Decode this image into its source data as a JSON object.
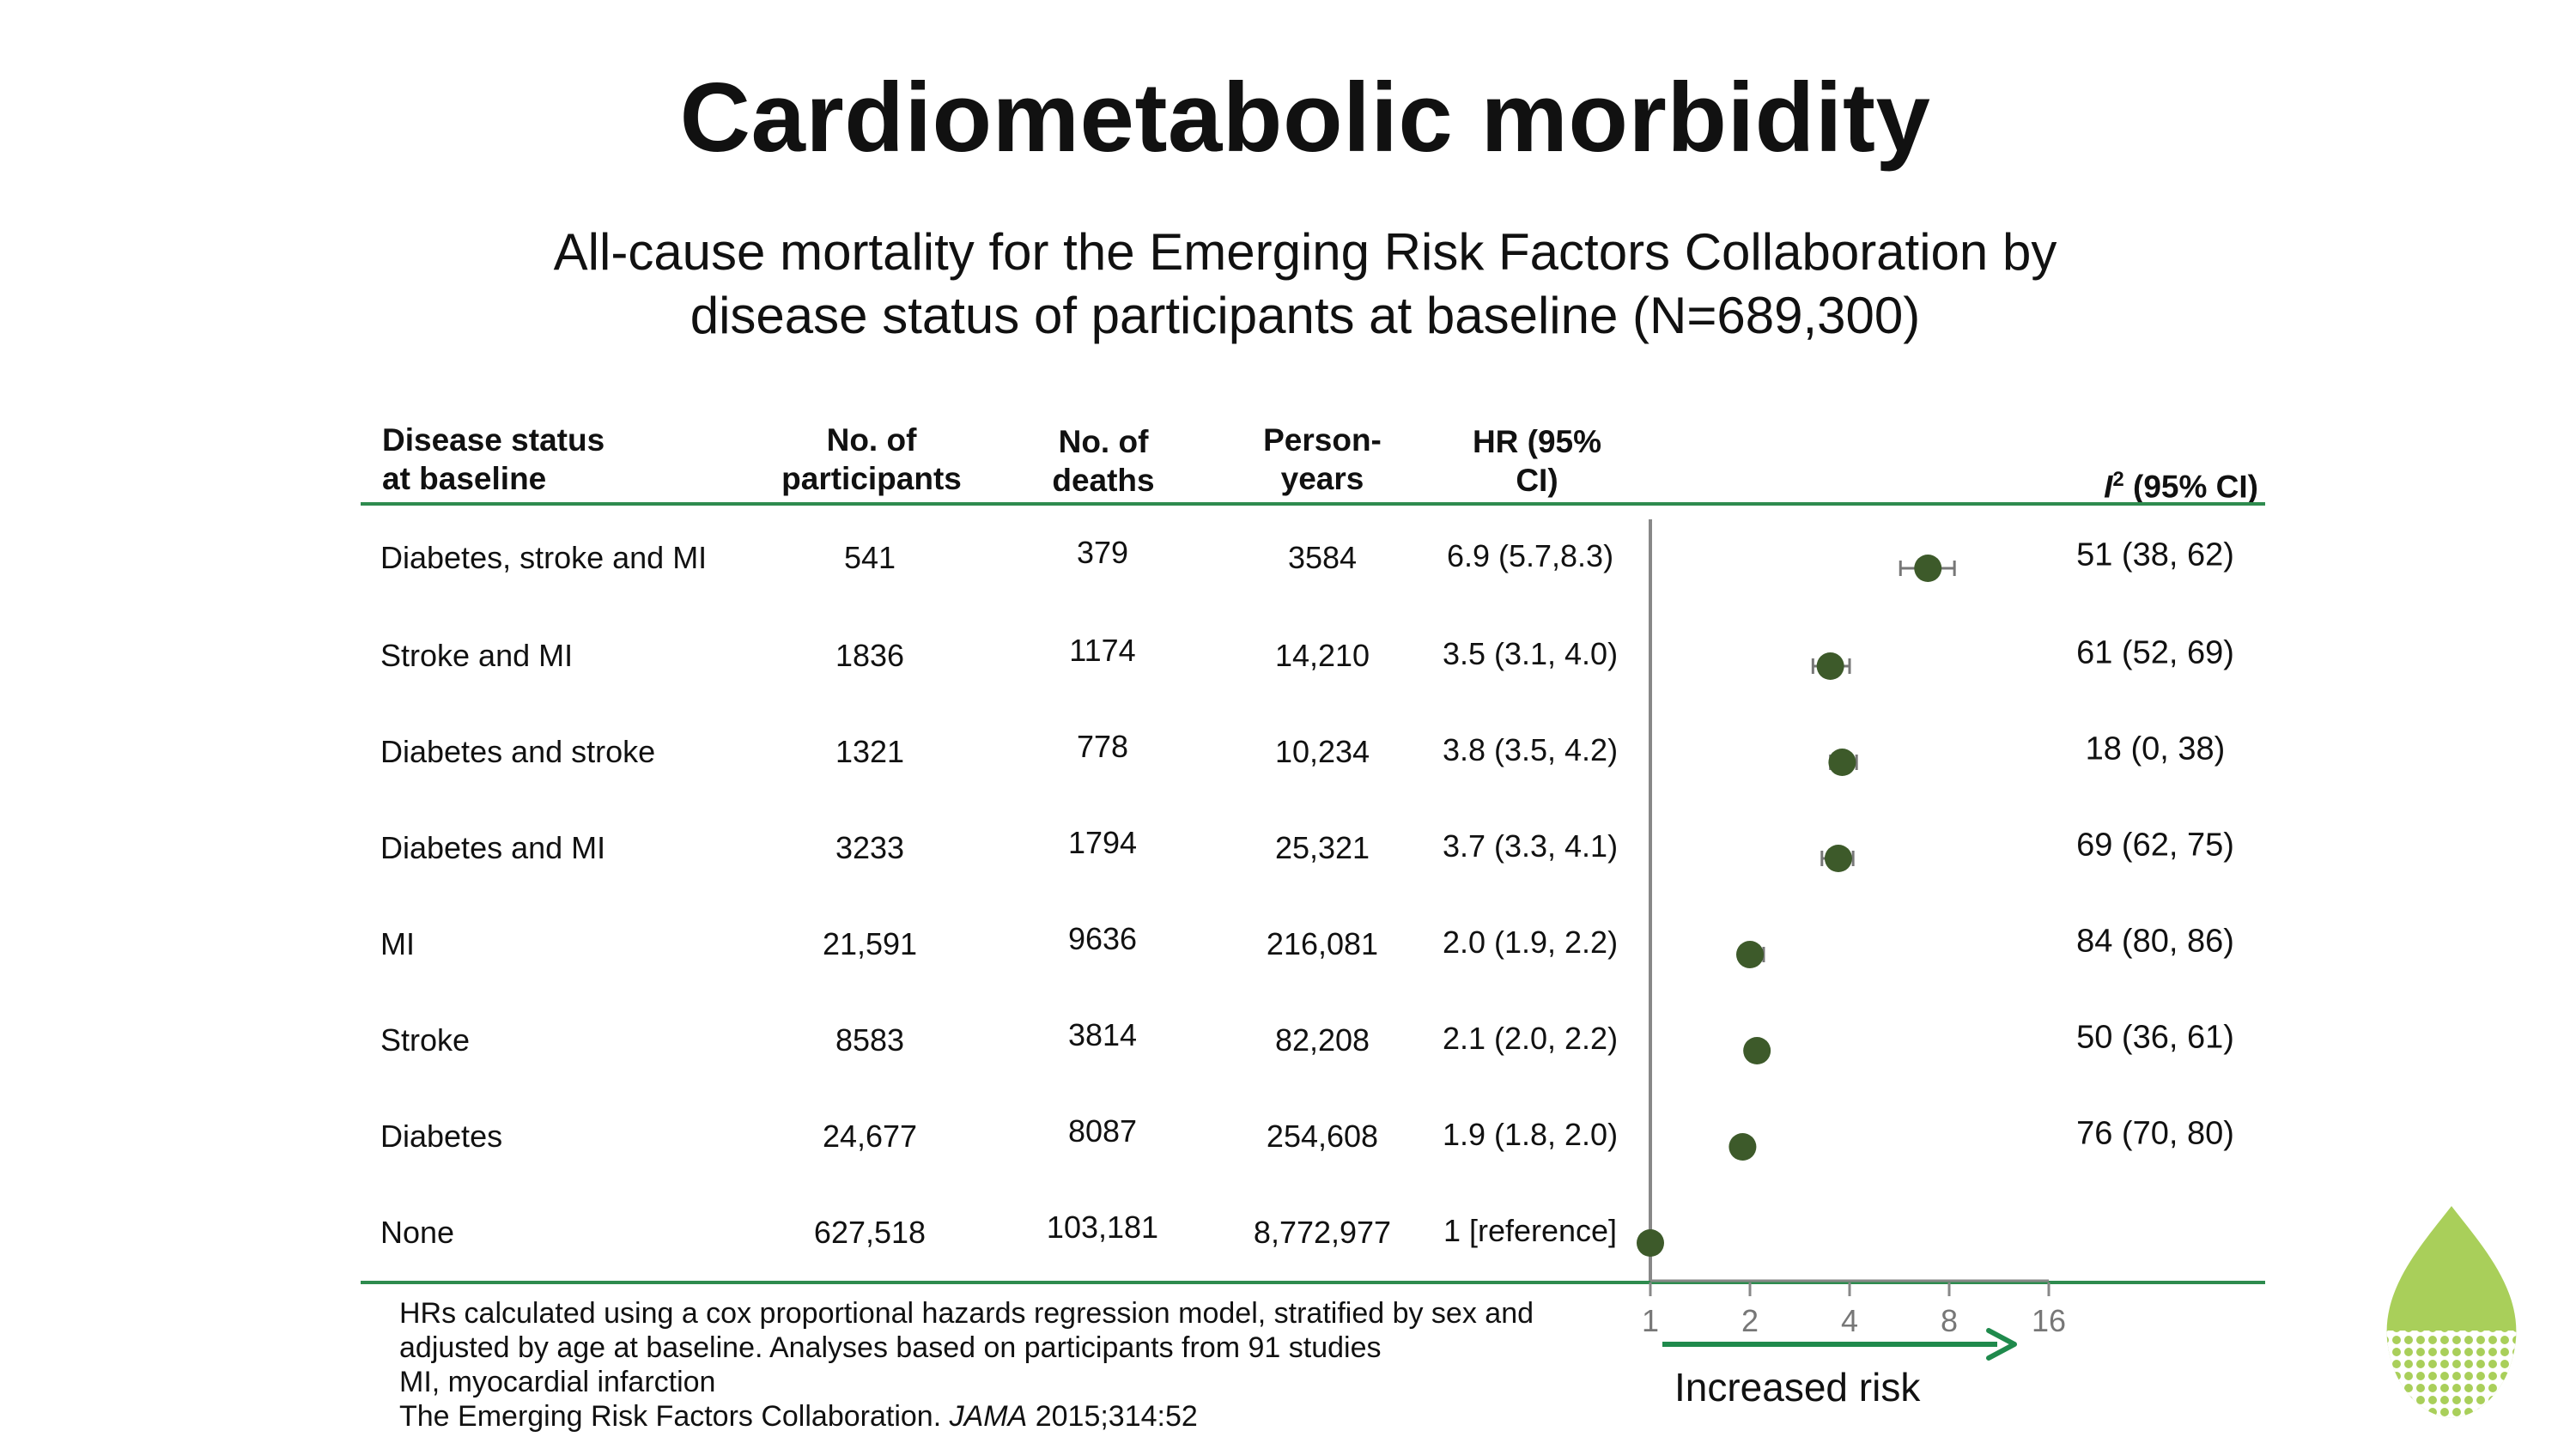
{
  "title": "Cardiometabolic morbidity",
  "subtitle_line1": "All-cause mortality for the Emerging Risk Factors Collaboration by",
  "subtitle_line2": "disease status of participants at baseline (N=689,300)",
  "table": {
    "headers": {
      "disease_l1": "Disease status",
      "disease_l2": "at baseline",
      "participants_l1": "No. of",
      "participants_l2": "participants",
      "deaths_l1": "No. of",
      "deaths_l2": "deaths",
      "person_l1": "Person-",
      "person_l2": "years",
      "hr_l1": "HR (95%",
      "hr_l2": "CI)",
      "i2_italic": "I",
      "i2_sup": "2",
      "i2_rest": " (95% CI)"
    },
    "rows": [
      {
        "status": "Diabetes, stroke and MI",
        "participants": "541",
        "deaths": "379",
        "person_years": "3584",
        "hr": "6.9 (5.7,8.3)",
        "i2": "51 (38, 62)"
      },
      {
        "status": "Stroke and MI",
        "participants": "1836",
        "deaths": "1174",
        "person_years": "14,210",
        "hr": "3.5 (3.1, 4.0)",
        "i2": "61 (52, 69)"
      },
      {
        "status": "Diabetes and stroke",
        "participants": "1321",
        "deaths": "778",
        "person_years": "10,234",
        "hr": "3.8 (3.5, 4.2)",
        "i2": "18 (0, 38)"
      },
      {
        "status": "Diabetes and MI",
        "participants": "3233",
        "deaths": "1794",
        "person_years": "25,321",
        "hr": "3.7 (3.3, 4.1)",
        "i2": "69 (62, 75)"
      },
      {
        "status": "MI",
        "participants": "21,591",
        "deaths": "9636",
        "person_years": "216,081",
        "hr": "2.0 (1.9, 2.2)",
        "i2": "84 (80, 86)"
      },
      {
        "status": "Stroke",
        "participants": "8583",
        "deaths": "3814",
        "person_years": "82,208",
        "hr": "2.1 (2.0, 2.2)",
        "i2": "50 (36, 61)"
      },
      {
        "status": "Diabetes",
        "participants": "24,677",
        "deaths": "8087",
        "person_years": "254,608",
        "hr": "1.9 (1.8, 2.0)",
        "i2": "76 (70, 80)"
      },
      {
        "status": "None",
        "participants": "627,518",
        "deaths": "103,181",
        "person_years": "8,772,977",
        "hr": "1 [reference]",
        "i2": ""
      }
    ]
  },
  "chart_data": {
    "type": "scatter",
    "subtype": "forest plot",
    "x_scale": "log2",
    "xlim": [
      1,
      16
    ],
    "xticks": [
      "1",
      "2",
      "4",
      "8",
      "16"
    ],
    "categories": [
      "Diabetes, stroke and MI",
      "Stroke and MI",
      "Diabetes and stroke",
      "Diabetes and MI",
      "MI",
      "Stroke",
      "Diabetes",
      "None"
    ],
    "estimates": [
      6.9,
      3.5,
      3.8,
      3.7,
      2.0,
      2.1,
      1.9,
      1
    ],
    "ci_low": [
      5.7,
      3.1,
      3.5,
      3.3,
      1.9,
      2.0,
      1.8,
      1
    ],
    "ci_high": [
      8.3,
      4.0,
      4.2,
      4.1,
      2.2,
      2.2,
      2.0,
      1
    ],
    "reference_line": 1,
    "arrow_label": "Increased risk",
    "marker_color": "#3d5a2a",
    "errorbar_color": "#777777",
    "arrow_color": "#1f8a4c"
  },
  "footnotes": {
    "line1": "HRs calculated using a cox proportional hazards regression model, stratified by sex and",
    "line2": "adjusted by age at baseline. Analyses based on participants from 91 studies",
    "line3": "MI, myocardial infarction",
    "line4_pre": "The Emerging Risk Factors Collaboration. ",
    "line4_journal": "JAMA",
    "line4_post": " 2015;314:52"
  },
  "colors": {
    "rule": "#2e8b4e",
    "leaf_light": "#a9cf5a",
    "leaf_dark": "#7aab2c"
  },
  "icons": {
    "logo": "leaf-logo-icon"
  }
}
